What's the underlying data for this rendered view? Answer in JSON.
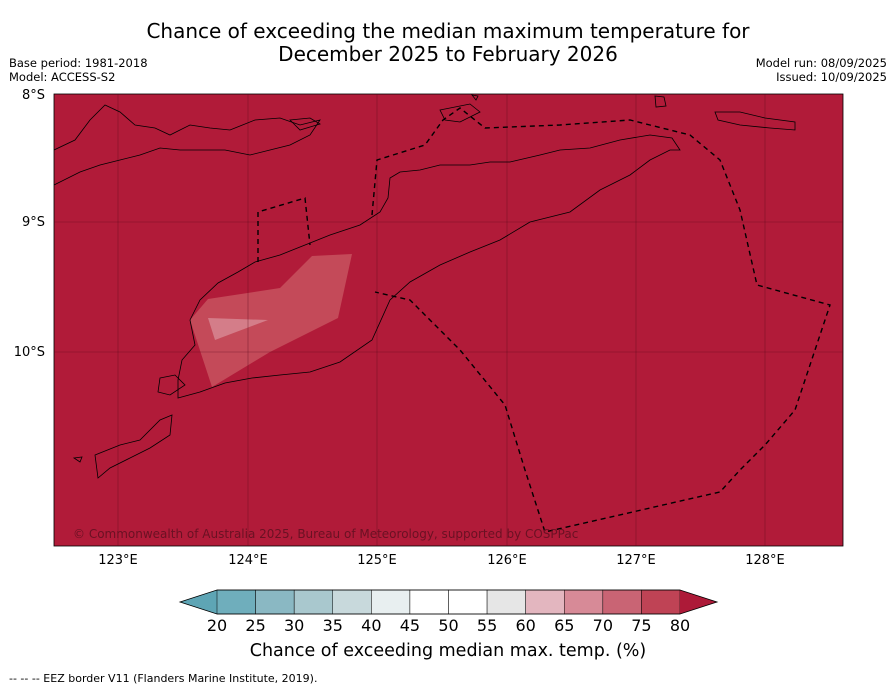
{
  "title_line1": "Chance of exceeding the median maximum temperature for",
  "title_line2": "December 2025 to February 2026",
  "meta_left": [
    "Base period: 1981-2018",
    "Model: ACCESS-S2"
  ],
  "meta_right": [
    "Model run: 08/09/2025",
    "Issued: 10/09/2025"
  ],
  "lat_labels": [
    "8°S",
    "9°S",
    "10°S"
  ],
  "lon_labels": [
    "123°E",
    "124°E",
    "125°E",
    "126°E",
    "127°E",
    "128°E"
  ],
  "copyright": "© Commonwealth of Australia 2025, Bureau of Meteorology, supported by COSPPac",
  "colorbar": {
    "ticks": [
      "20",
      "25",
      "30",
      "35",
      "40",
      "45",
      "50",
      "55",
      "60",
      "65",
      "70",
      "75",
      "80"
    ],
    "label": "Chance of exceeding median max. temp. (%)",
    "colors": [
      "#5ea5b5",
      "#6faebc",
      "#8ab8c3",
      "#a9c8ce",
      "#c8d9dc",
      "#e8eff0",
      "#ffffff",
      "#ffffff",
      "#e6e6e6",
      "#e3b6bf",
      "#d78a97",
      "#c96474",
      "#bf4355",
      "#ad1a38"
    ]
  },
  "footer": "--  --  -- EEZ border V11 (Flanders Marine Institute, 2019).",
  "colors": {
    "map_fill": "#b11b39",
    "mid_fill": "#c44a59",
    "light_fill": "#d47d89"
  }
}
